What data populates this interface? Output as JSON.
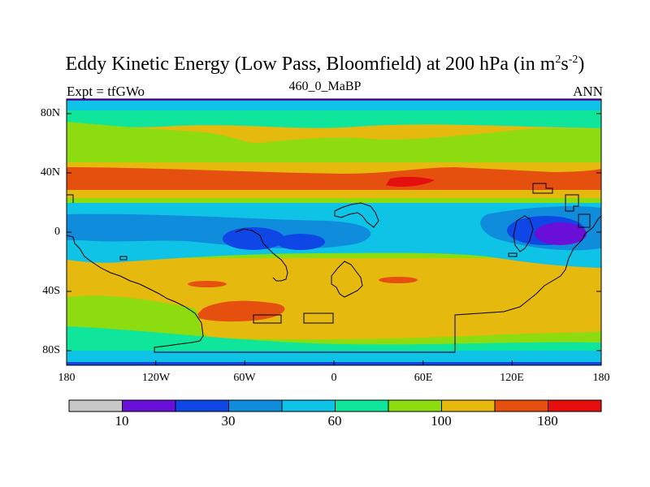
{
  "title": {
    "main_before": "Eddy Kinetic Energy (Low Pass, Bloomfield) at 200 hPa (in m",
    "sup1": "2",
    "mid": "s",
    "sup2": "-2",
    "after": ")"
  },
  "subtitle_left": "Expt = tfGWo",
  "subtitle_center": "460_0_MaBP",
  "subtitle_right": "ANN",
  "y_axis_labels": [
    "80N",
    "40N",
    "0",
    "40S",
    "80S"
  ],
  "x_axis_labels": [
    "180",
    "120W",
    "60W",
    "0",
    "60E",
    "120E",
    "180"
  ],
  "colorbar": {
    "colors": [
      "#c8c8c8",
      "#6a0fd8",
      "#0f46e6",
      "#0f8cdc",
      "#0fc3e6",
      "#0fe69b",
      "#8cdc0f",
      "#e6b90f",
      "#e6500f",
      "#e60f0f"
    ],
    "labels": [
      "10",
      "30",
      "60",
      "100",
      "180"
    ]
  }
}
